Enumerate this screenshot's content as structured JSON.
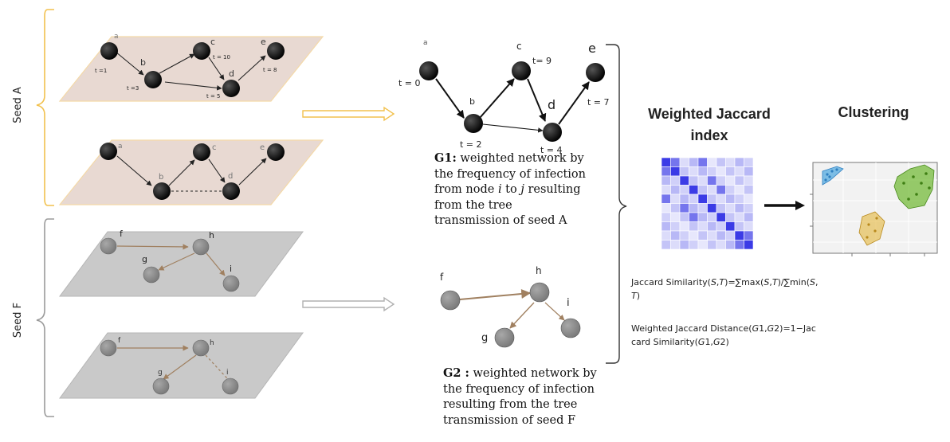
{
  "seeds": {
    "seed_a_label": "Seed A",
    "seed_f_label": "Seed F"
  },
  "panels": {
    "a_top": {
      "node_labels": {
        "a": "a",
        "b": "b",
        "c": "c",
        "d": "d",
        "e": "e"
      },
      "time_labels": {
        "a": "t =1",
        "b": "t =3",
        "c": "t = 10",
        "d": "t = 5",
        "e": "t = 8"
      }
    },
    "a_bottom": {
      "node_labels": {
        "a": "a",
        "b": "b",
        "c": "c",
        "d": "d",
        "e": "e"
      }
    },
    "f_top": {
      "node_labels": {
        "f": "f",
        "g": "g",
        "h": "h",
        "i": "i"
      }
    },
    "f_bottom": {
      "node_labels": {
        "f": "f",
        "g": "g",
        "h": "h",
        "i": "i"
      }
    }
  },
  "g1": {
    "node_labels": {
      "a": "a",
      "b": "b",
      "c": "c",
      "d": "d",
      "e": "e"
    },
    "time_labels": {
      "a": "t = 0",
      "b": "t = 2",
      "c": "t= 9",
      "d": "t = 4",
      "e": "t = 7"
    },
    "caption_bold": "G1:",
    "caption_1": " weighted network by",
    "caption_2": "the frequency of infection",
    "caption_3a": "from node ",
    "caption_i": "i",
    "caption_3b": " to ",
    "caption_j": "j",
    "caption_3c": " resulting",
    "caption_4": "from the tree",
    "caption_5": "transmission of seed A"
  },
  "g2": {
    "node_labels": {
      "f": "f",
      "g": "g",
      "h": "h",
      "i": "i"
    },
    "caption_bold": "G2 :",
    "caption_1": " weighted network by",
    "caption_2": "the frequency of infection",
    "caption_3": "resulting from the tree",
    "caption_4": "transmission of seed F"
  },
  "jaccard": {
    "title_line1": "Weighted Jaccard",
    "title_line2": "index",
    "formula_1a": "Jaccard Similarity(",
    "formula_1s": "S",
    "formula_1c": ",",
    "formula_1t": "T",
    "formula_1b": ")=∑max(",
    "formula_1s2": "S",
    "formula_1c2": ",",
    "formula_1t2": "T",
    "formula_1d": ")/∑min(",
    "formula_1s3": "S",
    "formula_1c3": ",",
    "formula_2t": "T",
    "formula_2b": ")",
    "formula_3a": "Weighted Jaccard Distance(",
    "formula_3g1": "G",
    "formula_3n1": "1,",
    "formula_3g2": "G",
    "formula_3n2": "2)=1−Jac",
    "formula_4a": "card Similarity(",
    "formula_4g1": "G",
    "formula_4n1": "1,",
    "formula_4g2": "G",
    "formula_4n2": "2)"
  },
  "clustering": {
    "title": "Clustering"
  },
  "colors": {
    "seed_a_bracket": "#f2c14e",
    "seed_a_plane": "#e8d9d2",
    "seed_a_plane_border": "#f4d9a8",
    "seed_f_plane": "#c9c9c9",
    "seed_f_node": "#8c8c8c",
    "brown_edge": "#a08060",
    "yellow_arrow": "#f2c14e",
    "gray_arrow": "#b0b0b0",
    "heatmap_blue": "#3b3be6",
    "cluster_blue": "#4aa6e0",
    "cluster_green": "#6db82f",
    "cluster_yellow": "#e3b53a"
  }
}
